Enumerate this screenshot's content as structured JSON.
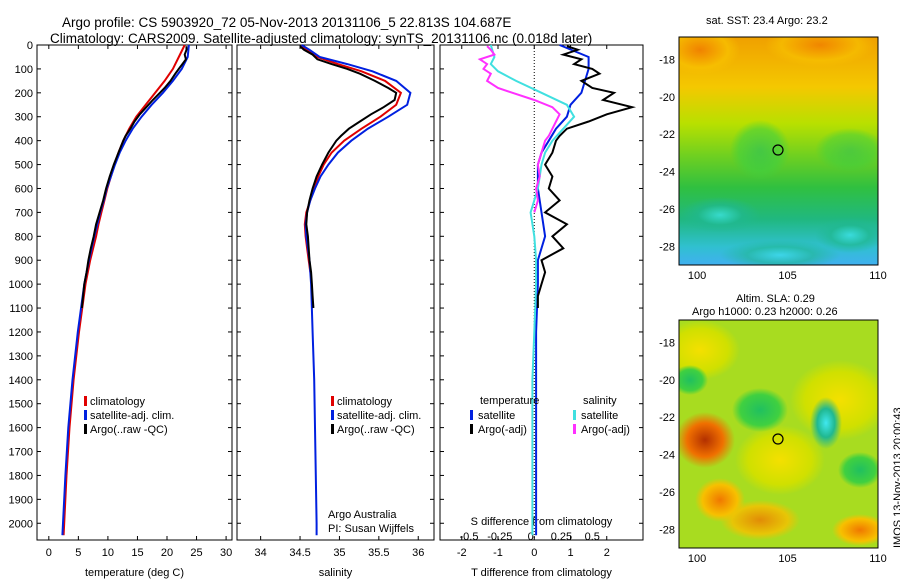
{
  "header": {
    "line1": "Argo profile: CS 5903920_72 05-Nov-2013 20131106_5 22.813S 104.687E",
    "line2": "Climatology: CARS2009. Satellite-adjusted climatology: synTS_20131106.nc (0.018d later)"
  },
  "stamp": "IMOS 13-Nov-2013 20:00:43",
  "colors": {
    "climatology": "#e00000",
    "satellite": "#0020e0",
    "argo": "#000000",
    "cyan": "#40e0e0",
    "magenta": "#ff30ff"
  },
  "chart_data": [
    {
      "type": "line",
      "xlabel": "temperature (deg C)",
      "xlim": [
        -2,
        31
      ],
      "ylim": [
        0,
        2070
      ],
      "xticks": [
        0,
        5,
        10,
        15,
        20,
        25,
        30
      ],
      "yticks": [
        0,
        100,
        200,
        300,
        400,
        500,
        600,
        700,
        800,
        900,
        1000,
        1100,
        1200,
        1300,
        1400,
        1500,
        1600,
        1700,
        1800,
        1900,
        2000
      ],
      "legend": [
        "climatology",
        "satellite-adj. clim.",
        "Argo(..raw -QC)"
      ],
      "legend_position": "lower-right",
      "series": [
        {
          "name": "climatology",
          "color": "#e00000",
          "depth": [
            0,
            50,
            100,
            150,
            200,
            250,
            300,
            350,
            400,
            450,
            500,
            550,
            600,
            650,
            700,
            750,
            800,
            900,
            1000,
            1200,
            1400,
            1600,
            1800,
            2000,
            2050
          ],
          "values": [
            23.0,
            22.0,
            21.0,
            19.6,
            18.0,
            16.4,
            14.8,
            13.6,
            12.6,
            11.8,
            11.1,
            10.5,
            9.9,
            9.4,
            8.9,
            8.4,
            8.0,
            7.0,
            6.2,
            5.1,
            4.2,
            3.5,
            3.0,
            2.6,
            2.5
          ]
        },
        {
          "name": "satellite-adj. clim.",
          "color": "#0020e0",
          "depth": [
            0,
            50,
            100,
            150,
            200,
            250,
            300,
            350,
            400,
            450,
            500,
            550,
            600,
            650,
            700,
            750,
            800,
            900,
            1000,
            1200,
            1400,
            1600,
            1800,
            2000,
            2050
          ],
          "values": [
            23.7,
            23.5,
            22.5,
            21.0,
            19.3,
            17.4,
            15.7,
            14.2,
            13.0,
            12.0,
            11.2,
            10.5,
            9.8,
            9.3,
            8.7,
            8.2,
            7.7,
            6.8,
            6.0,
            4.9,
            4.0,
            3.3,
            2.8,
            2.4,
            2.3
          ]
        },
        {
          "name": "Argo(..raw -QC)",
          "color": "#000000",
          "depth": [
            5,
            20,
            40,
            60,
            80,
            100,
            120,
            150,
            180,
            200,
            230,
            260,
            290,
            320,
            350,
            380,
            400,
            450,
            500,
            550,
            600,
            650,
            700,
            750,
            800,
            850,
            900,
            950,
            1000,
            1050,
            1100
          ],
          "values": [
            23.3,
            23.3,
            23.0,
            23.2,
            22.6,
            22.0,
            21.4,
            20.6,
            19.6,
            18.8,
            17.6,
            16.5,
            15.4,
            14.5,
            13.8,
            13.0,
            12.6,
            11.8,
            11.0,
            10.3,
            9.7,
            9.2,
            8.6,
            8.0,
            7.6,
            7.1,
            6.7,
            6.4,
            6.0,
            5.8,
            5.6
          ]
        }
      ]
    },
    {
      "type": "line",
      "xlabel": "salinity",
      "xlim": [
        33.7,
        36.2
      ],
      "ylim": [
        0,
        2070
      ],
      "xticks": [
        34,
        34.5,
        35,
        35.5,
        36
      ],
      "legend": [
        "climatology",
        "satellite-adj. clim.",
        "Argo(..raw -QC)"
      ],
      "legend_position": "lower-right",
      "annotation": [
        "Argo Australia",
        "PI: Susan Wijffels"
      ],
      "series": [
        {
          "name": "climatology",
          "color": "#e00000",
          "depth": [
            0,
            20,
            50,
            80,
            110,
            150,
            200,
            250,
            300,
            350,
            400,
            450,
            500,
            550,
            600,
            650,
            700,
            750,
            800,
            850,
            900,
            950
          ],
          "values": [
            34.52,
            34.58,
            34.72,
            34.98,
            35.28,
            35.58,
            35.78,
            35.72,
            35.52,
            35.28,
            35.06,
            34.9,
            34.8,
            34.73,
            34.68,
            34.63,
            34.58,
            34.56,
            34.57,
            34.59,
            34.61,
            34.63
          ]
        },
        {
          "name": "satellite-adj. clim.",
          "color": "#0020e0",
          "depth": [
            0,
            20,
            50,
            80,
            110,
            150,
            200,
            250,
            300,
            350,
            400,
            450,
            500,
            550,
            600,
            650,
            700,
            750,
            800,
            850,
            900,
            1000,
            1200,
            1400,
            1600,
            1800,
            2000,
            2050
          ],
          "values": [
            34.52,
            34.62,
            34.75,
            35.1,
            35.42,
            35.72,
            35.9,
            35.86,
            35.62,
            35.36,
            35.15,
            34.98,
            34.86,
            34.76,
            34.69,
            34.63,
            34.59,
            34.57,
            34.58,
            34.6,
            34.62,
            34.64,
            34.66,
            34.68,
            34.69,
            34.7,
            34.71,
            34.71
          ]
        },
        {
          "name": "Argo(..raw -QC)",
          "color": "#000000",
          "depth": [
            5,
            20,
            40,
            60,
            80,
            100,
            120,
            150,
            180,
            200,
            230,
            260,
            290,
            320,
            350,
            380,
            400,
            450,
            500,
            550,
            600,
            650,
            700,
            750,
            800,
            850,
            900,
            950,
            1000,
            1050,
            1100
          ],
          "values": [
            34.5,
            34.55,
            34.66,
            34.72,
            34.9,
            35.1,
            35.26,
            35.45,
            35.62,
            35.72,
            35.7,
            35.56,
            35.4,
            35.26,
            35.12,
            35.02,
            34.96,
            34.86,
            34.78,
            34.71,
            34.66,
            34.62,
            34.59,
            34.58,
            34.6,
            34.61,
            34.62,
            34.64,
            34.65,
            34.66,
            34.67
          ]
        }
      ]
    },
    {
      "type": "line",
      "xlabel": "T difference from climatology",
      "secondary_xlabel": "S difference from climatology",
      "xlim": [
        -2.6,
        3.0
      ],
      "ylim": [
        0,
        2070
      ],
      "xticks": [
        -2,
        -1,
        0,
        1,
        2
      ],
      "secondary_xticks": [
        "-0.5",
        "-0.25",
        "0",
        "0.25",
        "0.5"
      ],
      "legend_left_title": "temperature",
      "legend_right_title": "salinity",
      "legend": [
        "satellite",
        "Argo(-adj)",
        "satellite",
        "Argo(-adj)"
      ],
      "series": [
        {
          "name": "satellite",
          "color": "#0020e0",
          "quantity": "temperature",
          "depth": [
            0,
            50,
            100,
            150,
            200,
            250,
            300,
            350,
            400,
            450,
            500,
            600,
            700,
            800,
            900,
            1000,
            1200,
            1400,
            1600,
            1800,
            2000,
            2050
          ],
          "values": [
            0.7,
            1.5,
            1.5,
            1.4,
            1.3,
            1.0,
            0.9,
            0.6,
            0.4,
            0.2,
            0.1,
            0.1,
            0.2,
            0.3,
            0.1,
            0.1,
            0.05,
            0.05,
            0.05,
            0.05,
            0.05,
            0.05
          ]
        },
        {
          "name": "Argo(-adj)",
          "color": "#000000",
          "quantity": "temperature",
          "depth": [
            5,
            20,
            40,
            60,
            80,
            100,
            120,
            150,
            180,
            200,
            230,
            260,
            290,
            320,
            350,
            380,
            400,
            450,
            500,
            550,
            600,
            650,
            700,
            750,
            800,
            850,
            900,
            950,
            1000,
            1050,
            1100
          ],
          "values": [
            0.9,
            1.2,
            0.8,
            1.3,
            1.1,
            1.6,
            1.8,
            1.3,
            1.6,
            2.2,
            1.9,
            2.7,
            2.0,
            1.5,
            0.9,
            0.7,
            0.6,
            0.5,
            0.3,
            0.5,
            0.4,
            0.7,
            0.3,
            0.9,
            0.5,
            0.8,
            0.2,
            0.3,
            0.2,
            0.1,
            0.1
          ]
        },
        {
          "name": "satellite",
          "color": "#40e0e0",
          "quantity": "salinity",
          "depth": [
            0,
            50,
            80,
            110,
            150,
            200,
            250,
            300,
            350,
            400,
            450,
            500,
            600,
            700,
            800,
            900,
            1000,
            1200,
            1400,
            1600,
            1800,
            2000,
            2050
          ],
          "values": [
            -1.2,
            -1.1,
            -1.2,
            -1.0,
            -0.5,
            0.2,
            0.9,
            1.1,
            0.8,
            0.5,
            0.3,
            0.2,
            0.1,
            -0.1,
            0.0,
            0.05,
            0.05,
            0.0,
            -0.05,
            -0.05,
            -0.05,
            -0.05,
            -0.05
          ]
        },
        {
          "name": "Argo(-adj)",
          "color": "#ff30ff",
          "quantity": "salinity",
          "depth": [
            5,
            20,
            40,
            60,
            80,
            100,
            120,
            150,
            180,
            200,
            230,
            260,
            290,
            320,
            350,
            380,
            400,
            450,
            500,
            550,
            600,
            650,
            700
          ],
          "values": [
            -1.3,
            -1.2,
            -1.1,
            -1.5,
            -1.3,
            -1.4,
            -1.2,
            -1.3,
            -1.0,
            -0.6,
            0.0,
            0.5,
            0.7,
            0.6,
            0.5,
            0.4,
            0.3,
            0.2,
            0.1,
            0.15,
            0.05,
            0.1,
            0.0
          ]
        }
      ]
    },
    {
      "type": "heatmap",
      "title": "sat. SST: 23.4 Argo: 23.2",
      "xlim": [
        99,
        110
      ],
      "ylim": [
        -29,
        -16.8
      ],
      "xticks": [
        100,
        105,
        110
      ],
      "yticks": [
        -18,
        -20,
        -22,
        -24,
        -26,
        -28
      ],
      "marker": {
        "lon": 104.687,
        "lat": -22.813
      }
    },
    {
      "type": "heatmap",
      "title": "Altim. SLA: 0.29",
      "subtitle": "Argo h1000: 0.23 h2000: 0.26",
      "xlim": [
        99,
        110
      ],
      "ylim": [
        -29,
        -16.8
      ],
      "xticks": [
        100,
        105,
        110
      ],
      "yticks": [
        -18,
        -20,
        -22,
        -24,
        -26,
        -28
      ],
      "marker": {
        "lon": 104.687,
        "lat": -22.813
      }
    }
  ]
}
